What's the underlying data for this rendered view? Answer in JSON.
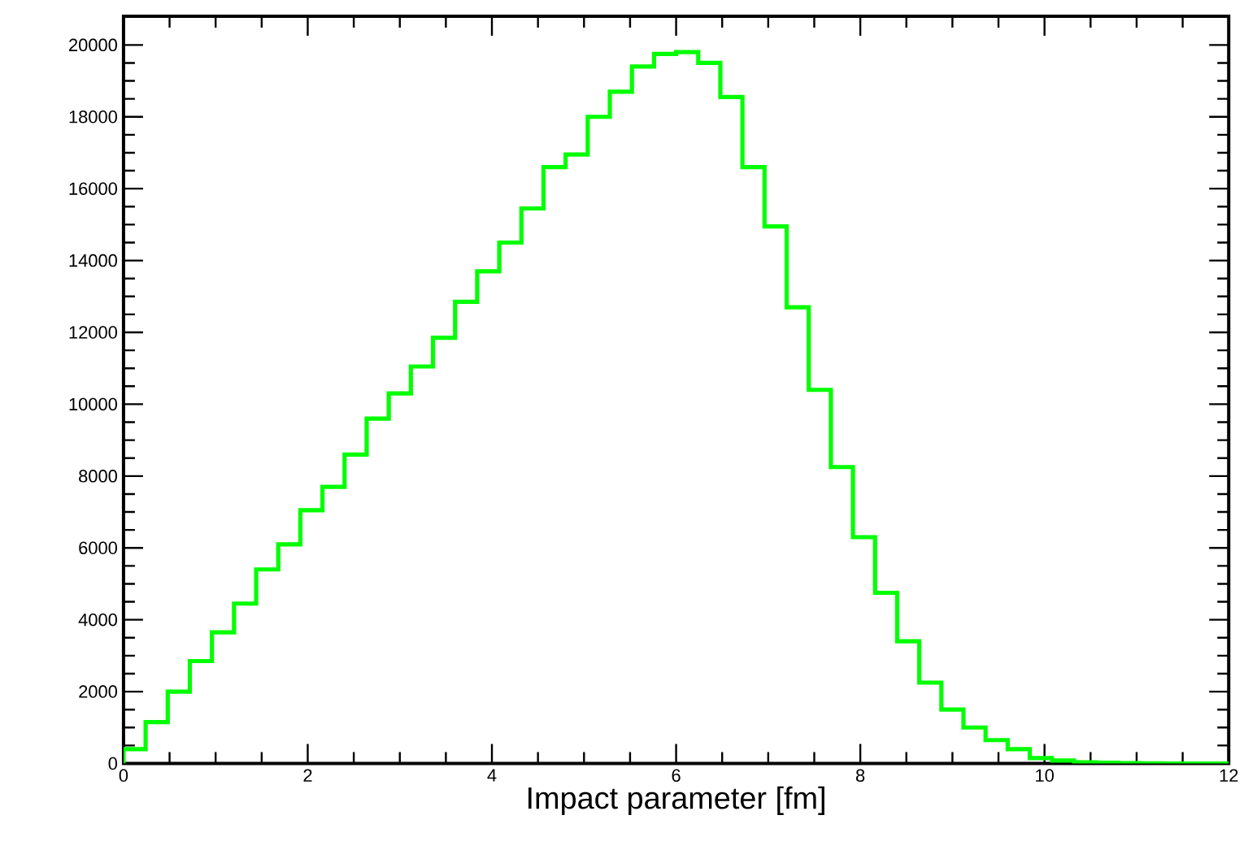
{
  "chart_data": {
    "type": "histogram",
    "xlabel": "Impact parameter [fm]",
    "bins": [
      0,
      0.24,
      0.48,
      0.72,
      0.96,
      1.2,
      1.44,
      1.68,
      1.92,
      2.16,
      2.4,
      2.64,
      2.88,
      3.12,
      3.36,
      3.6,
      3.84,
      4.08,
      4.32,
      4.56,
      4.8,
      5.04,
      5.28,
      5.52,
      5.76,
      6.0,
      6.24,
      6.48,
      6.72,
      6.96,
      7.2,
      7.44,
      7.68,
      7.92,
      8.16,
      8.4,
      8.64,
      8.88,
      9.12,
      9.36,
      9.6,
      9.84,
      10.08,
      10.32,
      10.56,
      10.8,
      11.04,
      11.28,
      11.52,
      11.76,
      12
    ],
    "values": [
      400,
      1150,
      2000,
      2850,
      3650,
      4450,
      5400,
      6100,
      7050,
      7700,
      8600,
      9600,
      10300,
      11050,
      11850,
      12850,
      13700,
      14500,
      15450,
      16600,
      16950,
      18000,
      18700,
      19400,
      19750,
      19800,
      19500,
      18550,
      16600,
      14950,
      12700,
      10400,
      8250,
      6300,
      4750,
      3400,
      2250,
      1500,
      1000,
      650,
      400,
      150,
      80,
      30,
      20,
      10,
      5,
      0,
      0,
      0
    ],
    "color": "#00ff00",
    "xlim": [
      0,
      12
    ],
    "xticks": [
      0,
      2,
      4,
      6,
      8,
      10,
      12
    ],
    "ylim": [
      0,
      20800
    ],
    "yticks": [
      0,
      2000,
      4000,
      6000,
      8000,
      10000,
      12000,
      14000,
      16000,
      18000,
      20000
    ],
    "grid": false
  }
}
